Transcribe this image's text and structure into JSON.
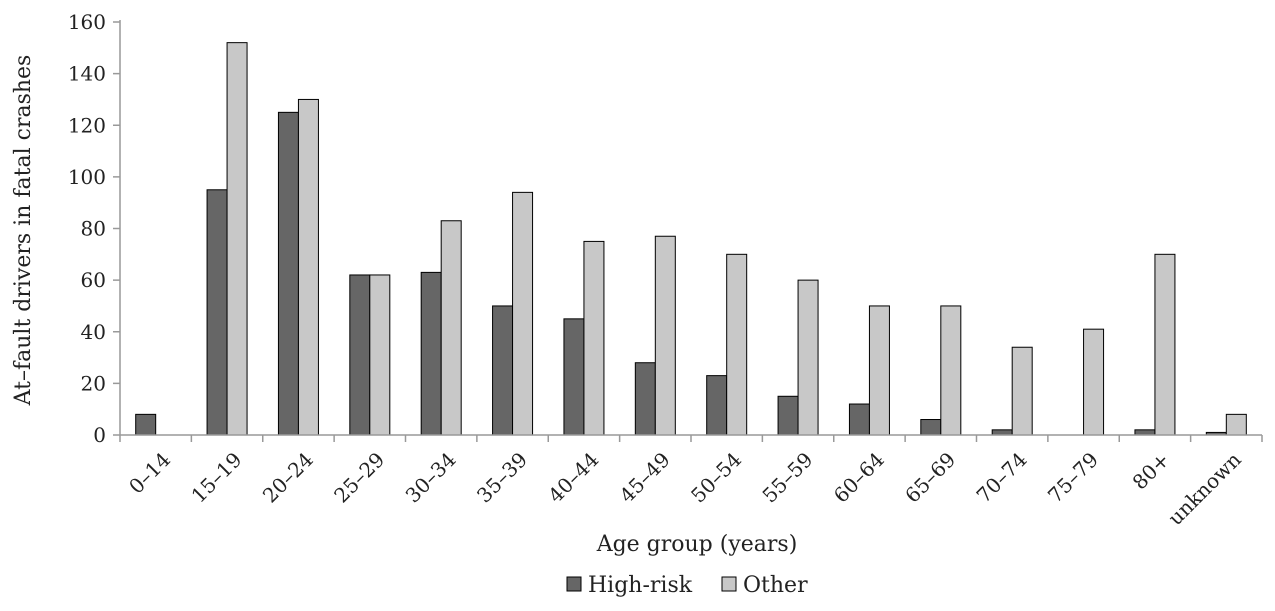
{
  "chart_data": {
    "type": "bar",
    "title": "",
    "xlabel": "Age group (years)",
    "ylabel": "At–fault drivers in fatal crashes",
    "ylim": [
      0,
      160
    ],
    "yticks": [
      0,
      20,
      40,
      60,
      80,
      100,
      120,
      140,
      160
    ],
    "categories": [
      "0–14",
      "15–19",
      "20–24",
      "25–29",
      "30–34",
      "35–39",
      "40–44",
      "45–49",
      "50–54",
      "55–59",
      "60–64",
      "65–69",
      "70–74",
      "75–79",
      "80+",
      "unknown"
    ],
    "series": [
      {
        "name": "High-risk",
        "color": "#666666",
        "values": [
          8,
          95,
          125,
          62,
          63,
          50,
          45,
          28,
          23,
          15,
          12,
          6,
          2,
          0,
          2,
          1
        ]
      },
      {
        "name": "Other",
        "color": "#c8c8c8",
        "values": [
          0,
          152,
          130,
          62,
          83,
          94,
          75,
          77,
          70,
          60,
          50,
          50,
          34,
          41,
          70,
          8
        ]
      }
    ],
    "grid": false,
    "legend": "bottom"
  }
}
